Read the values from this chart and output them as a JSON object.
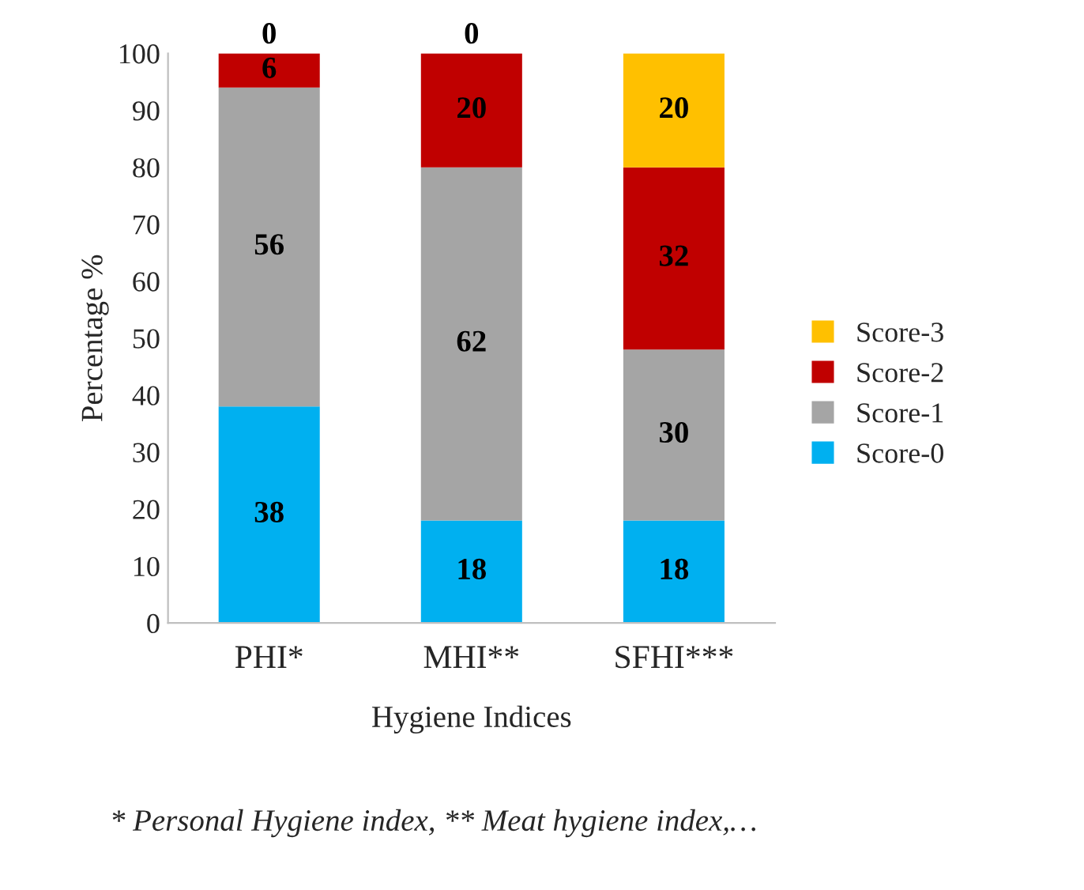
{
  "chart_data": {
    "type": "bar",
    "stacked": true,
    "xlabel": "Hygiene Indices",
    "ylabel": "Percentage %",
    "categories": [
      "PHI*",
      "MHI**",
      "SFHI***"
    ],
    "series": [
      {
        "name": "Score-0",
        "color": "#00b0f0",
        "values": [
          38,
          18,
          18
        ]
      },
      {
        "name": "Score-1",
        "color": "#a5a5a5",
        "values": [
          56,
          62,
          30
        ]
      },
      {
        "name": "Score-2",
        "color": "#c00000",
        "values": [
          6,
          20,
          32
        ]
      },
      {
        "name": "Score-3",
        "color": "#ffc000",
        "values": [
          0,
          0,
          20
        ]
      }
    ],
    "ylim": [
      0,
      100
    ],
    "yticks": [
      0,
      10,
      20,
      30,
      40,
      50,
      60,
      70,
      80,
      90,
      100
    ],
    "data_labels": true,
    "grid": false,
    "legend": "right",
    "annotations": [
      "* Personal Hygiene index, ** Meat hygiene index,…"
    ]
  }
}
